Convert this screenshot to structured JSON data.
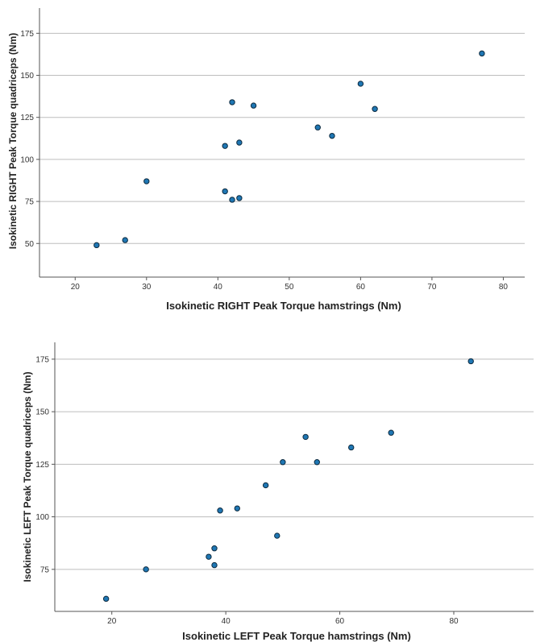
{
  "colors": {
    "point_fill": "#1f77b4",
    "point_stroke": "#0d2a3f",
    "grid": "#bdbdbd",
    "axis": "#555555"
  },
  "chart_data": [
    {
      "type": "scatter",
      "xlabel": "Isokinetic RIGHT Peak Torque hamstrings (Nm)",
      "ylabel": "Isokinetic RIGHT Peak Torque quadriceps (Nm)",
      "x_ticks": [
        20,
        30,
        40,
        50,
        60,
        70,
        80
      ],
      "y_ticks": [
        50,
        75,
        100,
        125,
        150,
        175
      ],
      "xlim": [
        15,
        83
      ],
      "ylim": [
        30,
        190
      ],
      "grid": "horizontal",
      "points": [
        {
          "x": 23,
          "y": 49
        },
        {
          "x": 27,
          "y": 52
        },
        {
          "x": 30,
          "y": 87
        },
        {
          "x": 41,
          "y": 81
        },
        {
          "x": 41,
          "y": 108
        },
        {
          "x": 42,
          "y": 76
        },
        {
          "x": 42,
          "y": 134
        },
        {
          "x": 43,
          "y": 77
        },
        {
          "x": 43,
          "y": 110
        },
        {
          "x": 45,
          "y": 132
        },
        {
          "x": 54,
          "y": 119
        },
        {
          "x": 56,
          "y": 114
        },
        {
          "x": 60,
          "y": 145
        },
        {
          "x": 62,
          "y": 130
        },
        {
          "x": 77,
          "y": 163
        }
      ]
    },
    {
      "type": "scatter",
      "xlabel": "Isokinetic LEFT Peak Torque hamstrings (Nm)",
      "ylabel": "Isokinetic LEFT Peak Torque quadriceps (Nm)",
      "x_ticks": [
        20,
        40,
        60,
        80
      ],
      "y_ticks": [
        75,
        100,
        125,
        150,
        175
      ],
      "xlim": [
        10,
        94
      ],
      "ylim": [
        55,
        183
      ],
      "grid": "horizontal",
      "points": [
        {
          "x": 19,
          "y": 61
        },
        {
          "x": 26,
          "y": 75
        },
        {
          "x": 37,
          "y": 81
        },
        {
          "x": 38,
          "y": 77
        },
        {
          "x": 38,
          "y": 85
        },
        {
          "x": 39,
          "y": 103
        },
        {
          "x": 42,
          "y": 104
        },
        {
          "x": 47,
          "y": 115
        },
        {
          "x": 49,
          "y": 91
        },
        {
          "x": 50,
          "y": 126
        },
        {
          "x": 54,
          "y": 138
        },
        {
          "x": 56,
          "y": 126
        },
        {
          "x": 62,
          "y": 133
        },
        {
          "x": 69,
          "y": 140
        },
        {
          "x": 83,
          "y": 174
        }
      ]
    }
  ]
}
